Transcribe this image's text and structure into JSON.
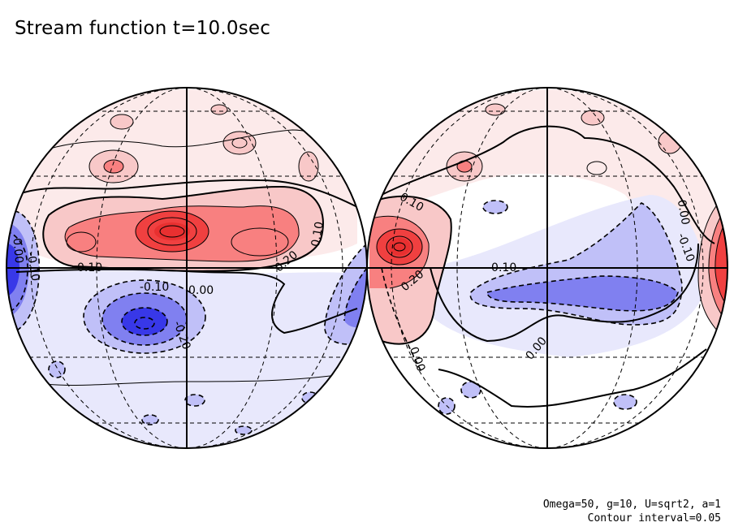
{
  "figure": {
    "title": "Stream function t=10.0sec",
    "parameters": "Omega=50, g=10, U=sqrt2, a=1",
    "contour_interval_label": "Contour interval=0.05"
  },
  "colors": {
    "positive_strong": "#f04040",
    "positive_mid": "#f88080",
    "positive_light": "#f8c8c8",
    "positive_faint": "#fceaea",
    "negative_strong": "#3838e8",
    "negative_mid": "#8080f0",
    "negative_light": "#c0c0f8",
    "negative_faint": "#e8e8fc",
    "line": "#000000",
    "grid": "#000000"
  },
  "globes": [
    {
      "name": "left-hemisphere",
      "labels": [
        {
          "text": "0.10",
          "kind": "positive"
        },
        {
          "text": "0.20",
          "kind": "positive"
        },
        {
          "text": "-0.10",
          "kind": "negative"
        },
        {
          "text": "0.00",
          "kind": "zero"
        },
        {
          "text": "-0.20",
          "kind": "negative"
        },
        {
          "text": "-0.10",
          "kind": "negative"
        },
        {
          "text": "0.10",
          "kind": "positive"
        },
        {
          "text": "0.00",
          "kind": "zero"
        }
      ]
    },
    {
      "name": "right-hemisphere",
      "labels": [
        {
          "text": "0.10",
          "kind": "positive"
        },
        {
          "text": "0.20",
          "kind": "positive"
        },
        {
          "text": "-0.10",
          "kind": "negative"
        },
        {
          "text": "0.00",
          "kind": "zero"
        },
        {
          "text": "0.00",
          "kind": "zero"
        },
        {
          "text": "-0.10",
          "kind": "negative"
        },
        {
          "text": "0.00",
          "kind": "zero"
        }
      ]
    }
  ]
}
